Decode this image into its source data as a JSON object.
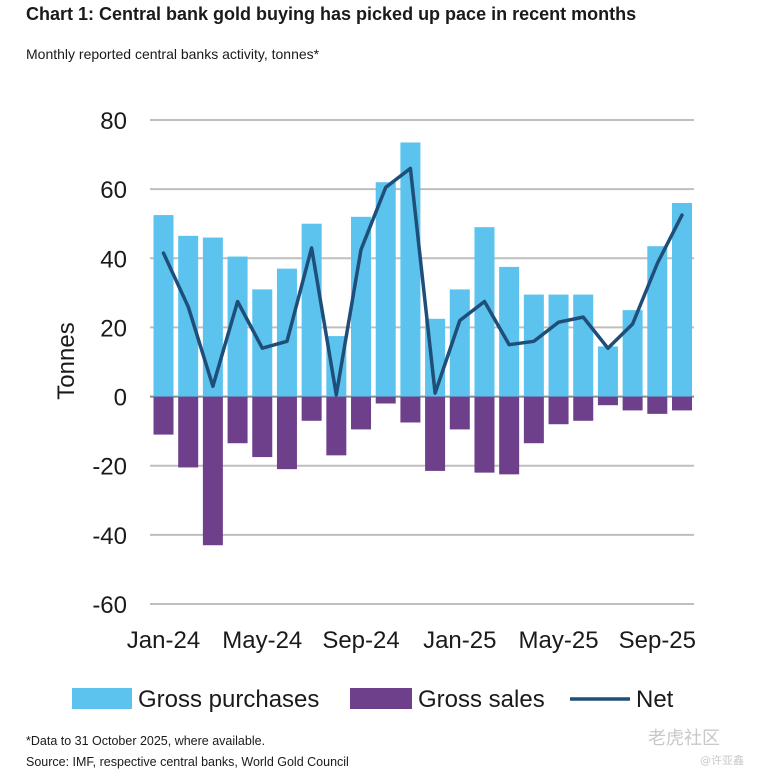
{
  "header": {
    "title": "Chart 1: Central bank gold buying has picked up pace in recent months",
    "subtitle": "Monthly reported central banks activity, tonnes*"
  },
  "footer": {
    "footnote": "*Data to 31 October 2025, where available.",
    "source": "Source: IMF, respective central banks, World Gold Council"
  },
  "watermark": {
    "text": "老虎社区",
    "sub": "@许亚鑫"
  },
  "colors": {
    "purchases": "#5bc3ee",
    "sales": "#6e3f8a",
    "net": "#1f4e79",
    "grid": "#bfbfbf",
    "zero_line": "#8c8c8c"
  },
  "chart_data": {
    "type": "bar",
    "ylabel": "Tonnes",
    "ylim": [
      -60,
      80
    ],
    "yticks": [
      80,
      60,
      40,
      20,
      0,
      -20,
      -40,
      -60
    ],
    "x_tick_labels": [
      {
        "label": "Jan-24",
        "index": 0
      },
      {
        "label": "May-24",
        "index": 4
      },
      {
        "label": "Sep-24",
        "index": 8
      },
      {
        "label": "Jan-25",
        "index": 12
      },
      {
        "label": "May-25",
        "index": 16
      },
      {
        "label": "Sep-25",
        "index": 20
      }
    ],
    "categories": [
      "Jan-24",
      "Feb-24",
      "Mar-24",
      "Apr-24",
      "May-24",
      "Jun-24",
      "Jul-24",
      "Aug-24",
      "Sep-24",
      "Oct-24",
      "Nov-24",
      "Dec-24",
      "Jan-25",
      "Feb-25",
      "Mar-25",
      "Apr-25",
      "May-25",
      "Jun-25",
      "Jul-25",
      "Aug-25",
      "Sep-25",
      "Oct-25"
    ],
    "series": [
      {
        "name": "Gross purchases",
        "type": "bar",
        "values": [
          52.5,
          46.5,
          46,
          40.5,
          31,
          37,
          50,
          17.5,
          52,
          62,
          73.5,
          22.5,
          31,
          49,
          37.5,
          29.5,
          29.5,
          29.5,
          14.5,
          25,
          43.5,
          56
        ]
      },
      {
        "name": "Gross sales",
        "type": "bar",
        "values": [
          -11,
          -20.5,
          -43,
          -13.5,
          -17.5,
          -21,
          -7,
          -17,
          -9.5,
          -2,
          -7.5,
          -21.5,
          -9.5,
          -22,
          -22.5,
          -13.5,
          -8,
          -7,
          -2.5,
          -4,
          -5,
          -4
        ]
      },
      {
        "name": "Net",
        "type": "line",
        "values": [
          41.5,
          26,
          3,
          27.5,
          14,
          16,
          43,
          0.5,
          42.5,
          60.5,
          66,
          1,
          22,
          27.5,
          15,
          16,
          21.5,
          23,
          14,
          21,
          38.5,
          52.5
        ]
      }
    ],
    "grid": true,
    "legend": "bottom"
  }
}
